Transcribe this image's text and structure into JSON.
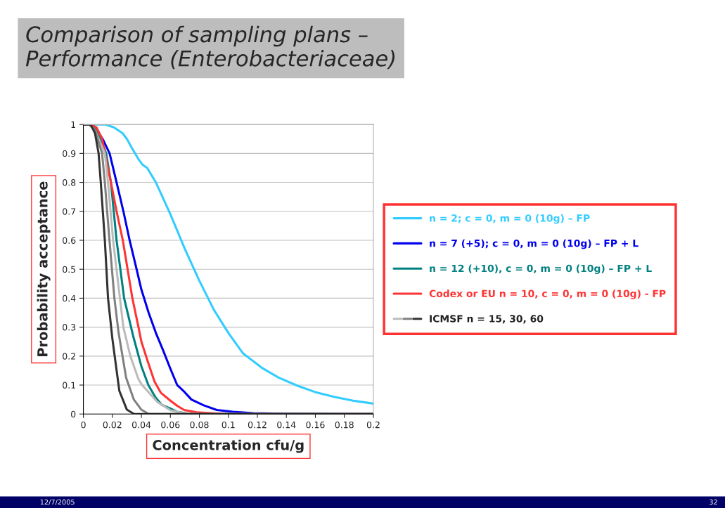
{
  "chart_data": {
    "type": "line",
    "title": "Comparison of sampling plans –\nPerformance (Enterobacteriaceae)",
    "xlabel": "Concentration cfu/g",
    "ylabel": "Probability acceptance",
    "xlim": [
      0,
      0.2
    ],
    "xticks": [
      0,
      0.02,
      0.04,
      0.06,
      0.08,
      0.1,
      0.12,
      0.14,
      0.16,
      0.18,
      0.2
    ],
    "ylim": [
      0,
      1
    ],
    "yticks": [
      0,
      0.1,
      0.2,
      0.3,
      0.4,
      0.5,
      0.6,
      0.7,
      0.8,
      0.9,
      1
    ],
    "grid": "y",
    "legend": "right",
    "marker": "none",
    "line_style": "solid",
    "annotations": [
      "12/7/2005",
      "32"
    ],
    "series": [
      {
        "name": "n = 2; c = 0, m = 0 (10g) – FP",
        "color": "#33ccff",
        "x": [
          0,
          0.01,
          0.015,
          0.021,
          0.027,
          0.03,
          0.0333,
          0.038,
          0.041,
          0.044,
          0.05,
          0.06,
          0.07,
          0.08,
          0.09,
          0.1,
          0.11,
          0.123,
          0.1346,
          0.148,
          0.1597,
          0.1733,
          0.186,
          0.2
        ],
        "values": [
          1,
          1,
          1,
          0.99,
          0.97,
          0.95,
          0.92,
          0.88,
          0.86,
          0.85,
          0.8,
          0.69,
          0.57,
          0.46,
          0.36,
          0.28,
          0.21,
          0.16,
          0.126,
          0.097,
          0.076,
          0.059,
          0.046,
          0.036
        ]
      },
      {
        "name": "n = 7 (+5); c = 0, m = 0 (10g) – FP + L",
        "color": "#0000ee",
        "x": [
          0.0081,
          0.0133,
          0.0181,
          0.0229,
          0.0276,
          0.0319,
          0.0367,
          0.04,
          0.045,
          0.05,
          0.055,
          0.0597,
          0.0647,
          0.069,
          0.0745,
          0.083,
          0.092,
          0.103,
          0.117,
          0.137,
          0.2
        ],
        "values": [
          0.99,
          0.95,
          0.9,
          0.8,
          0.7,
          0.6,
          0.5,
          0.43,
          0.35,
          0.28,
          0.22,
          0.16,
          0.1,
          0.08,
          0.05,
          0.03,
          0.014,
          0.008,
          0.003,
          0.001,
          0
        ]
      },
      {
        "name": "n = 12 (+10), c = 0, m = 0 (10g) – FP + L",
        "color": "#008080",
        "x": [
          0,
          0.005,
          0.0086,
          0.0157,
          0.019,
          0.0229,
          0.0281,
          0.0343,
          0.04,
          0.0448,
          0.0498,
          0.054,
          0.06,
          0.0645,
          0.0715,
          0.09,
          0.2
        ],
        "values": [
          1,
          1,
          0.99,
          0.9,
          0.8,
          0.6,
          0.4,
          0.27,
          0.165,
          0.1,
          0.057,
          0.032,
          0.019,
          0.008,
          0.002,
          0,
          0
        ]
      },
      {
        "name": "Codex or EU n = 10, c = 0, m = 0 (10g) - FP",
        "color": "#ff3333",
        "x": [
          0,
          0.005,
          0.009,
          0.013,
          0.0148,
          0.019,
          0.0229,
          0.0272,
          0.0305,
          0.0338,
          0.038,
          0.04,
          0.0445,
          0.049,
          0.0535,
          0.06,
          0.0645,
          0.0695,
          0.078,
          0.092,
          0.1,
          0.2
        ],
        "values": [
          1,
          1,
          0.99,
          0.95,
          0.9,
          0.8,
          0.7,
          0.6,
          0.5,
          0.4,
          0.3,
          0.25,
          0.18,
          0.113,
          0.073,
          0.046,
          0.029,
          0.014,
          0.006,
          0.002,
          0,
          0
        ]
      },
      {
        "name": "ICMSF n = 15, 30, 60",
        "color": "#bbbbbb",
        "x": [
          0,
          0.004,
          0.008,
          0.0148,
          0.017,
          0.0205,
          0.0252,
          0.0276,
          0.0324,
          0.038,
          0.0405,
          0.051,
          0.06,
          0.069,
          0.08,
          0.2
        ],
        "values": [
          1,
          1,
          0.98,
          0.9,
          0.8,
          0.6,
          0.4,
          0.3,
          0.2,
          0.12,
          0.1,
          0.042,
          0.013,
          0.003,
          0,
          0
        ]
      },
      {
        "color": "#808080",
        "x": [
          0,
          0.004,
          0.008,
          0.0129,
          0.0148,
          0.018,
          0.0214,
          0.0243,
          0.0295,
          0.0348,
          0.04,
          0.045,
          0.2
        ],
        "values": [
          1,
          1,
          0.98,
          0.9,
          0.8,
          0.6,
          0.4,
          0.28,
          0.125,
          0.05,
          0.015,
          0,
          0
        ]
      },
      {
        "color": "#333333",
        "x": [
          0,
          0.005,
          0.008,
          0.0105,
          0.012,
          0.0148,
          0.017,
          0.02,
          0.0248,
          0.03,
          0.035,
          0.2
        ],
        "values": [
          1,
          1,
          0.97,
          0.9,
          0.8,
          0.6,
          0.4,
          0.26,
          0.08,
          0.015,
          0,
          0
        ]
      }
    ]
  }
}
